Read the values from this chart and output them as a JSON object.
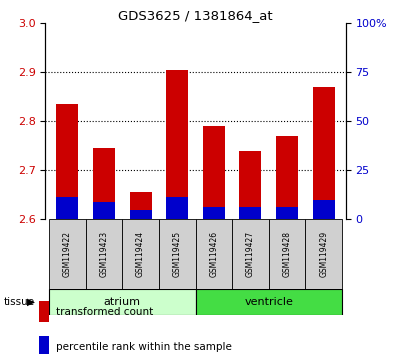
{
  "title": "GDS3625 / 1381864_at",
  "samples": [
    "GSM119422",
    "GSM119423",
    "GSM119424",
    "GSM119425",
    "GSM119426",
    "GSM119427",
    "GSM119428",
    "GSM119429"
  ],
  "transformed_count": [
    2.835,
    2.745,
    2.655,
    2.905,
    2.79,
    2.74,
    2.77,
    2.87
  ],
  "percentile_rank": [
    2.645,
    2.635,
    2.62,
    2.645,
    2.625,
    2.625,
    2.625,
    2.64
  ],
  "ylim_left": [
    2.6,
    3.0
  ],
  "ylim_right": [
    0,
    100
  ],
  "yticks_left": [
    2.6,
    2.7,
    2.8,
    2.9,
    3.0
  ],
  "yticks_right": [
    0,
    25,
    50,
    75,
    100
  ],
  "bar_width": 0.6,
  "red_color": "#cc0000",
  "blue_color": "#0000cc",
  "background_color": "#ffffff",
  "tick_label_color_left": "#cc0000",
  "tick_label_color_right": "#0000cc",
  "bar_bottom": 2.6,
  "atrium_color": "#ccffcc",
  "ventricle_color": "#44dd44",
  "sample_box_color": "#d0d0d0",
  "atrium_indices": [
    0,
    1,
    2,
    3
  ],
  "ventricle_indices": [
    4,
    5,
    6,
    7
  ]
}
